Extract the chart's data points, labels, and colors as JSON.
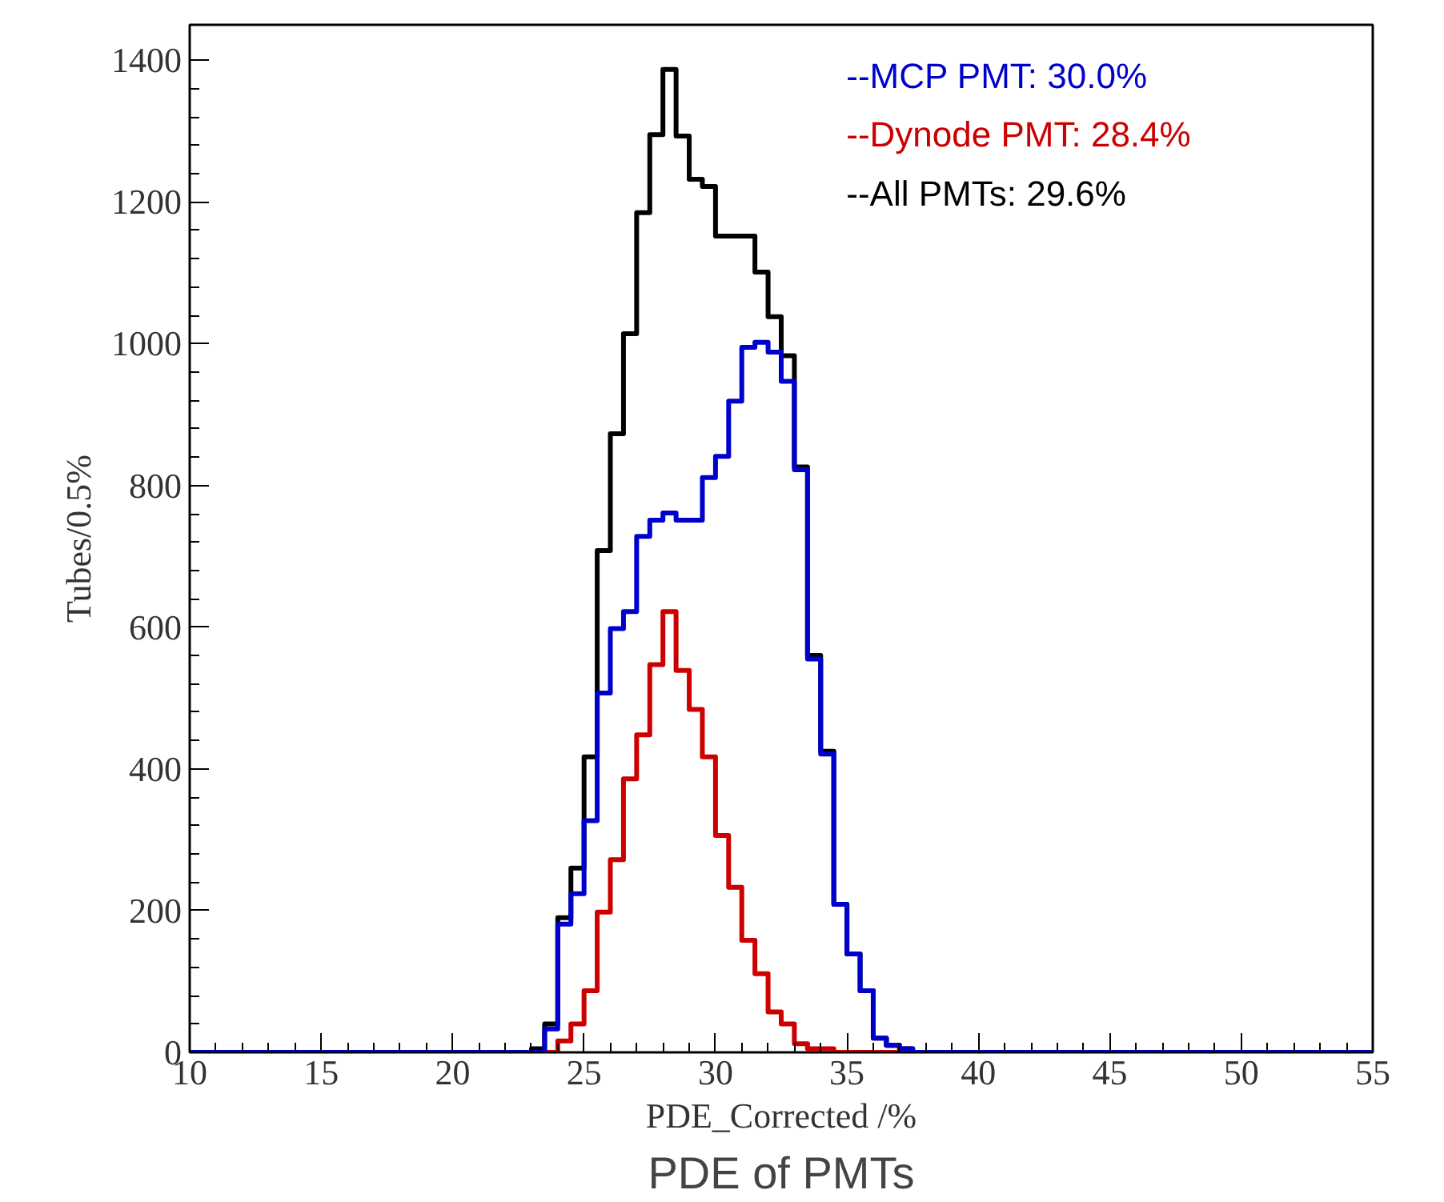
{
  "chart_data": {
    "type": "histogram",
    "title": "PDE of PMTs",
    "xlabel": "PDE_Corrected /%",
    "ylabel": "Tubes/0.5%",
    "bins": [
      10,
      10.5,
      11,
      11.5,
      12,
      12.5,
      13,
      13.5,
      14,
      14.5,
      15,
      15.5,
      16,
      16.5,
      17,
      17.5,
      18,
      18.5,
      19,
      19.5,
      20,
      20.5,
      21,
      21.5,
      22,
      22.5,
      23,
      23.5,
      24,
      24.5,
      25,
      25.5,
      26,
      26.5,
      27,
      27.5,
      28,
      28.5,
      29,
      29.5,
      30,
      30.5,
      31,
      31.5,
      32,
      32.5,
      33,
      33.5,
      34,
      34.5,
      35,
      35.5,
      36,
      36.5,
      37,
      37.5,
      38,
      38.5,
      39,
      39.5,
      40,
      40.5,
      41,
      41.5,
      42,
      42.5,
      43,
      43.5,
      44,
      44.5,
      45,
      45.5,
      46,
      46.5,
      47,
      47.5,
      48,
      48.5,
      49,
      49.5,
      50,
      50.5,
      51,
      51.5,
      52,
      52.5,
      53,
      53.5,
      54,
      54.5,
      55
    ],
    "series": [
      {
        "name": "--MCP PMT:  30.0%",
        "color": "#0000cc",
        "values": [
          0,
          0,
          0,
          0,
          0,
          0,
          0,
          0,
          0,
          0,
          0,
          0,
          0,
          0,
          0,
          0,
          0,
          0,
          0,
          0,
          0,
          0,
          0,
          0,
          0,
          0,
          0,
          33,
          181,
          224,
          327,
          507,
          598,
          622,
          728,
          751,
          761,
          751,
          751,
          811,
          841,
          919,
          995,
          1002,
          988,
          947,
          822,
          555,
          421,
          209,
          139,
          87,
          20,
          10,
          5,
          0,
          0,
          0,
          0,
          0,
          0,
          0,
          0,
          0,
          0,
          0,
          0,
          0,
          0,
          0,
          0,
          0,
          0,
          0,
          0,
          0,
          0,
          0,
          0,
          0,
          0,
          0,
          0,
          0,
          0,
          0,
          0,
          0,
          0,
          0
        ]
      },
      {
        "name": "--Dynode PMT: 28.4%",
        "color": "#cc0000",
        "values": [
          0,
          0,
          0,
          0,
          0,
          0,
          0,
          0,
          0,
          0,
          0,
          0,
          0,
          0,
          0,
          0,
          0,
          0,
          0,
          0,
          0,
          0,
          0,
          0,
          0,
          0,
          0,
          0,
          16,
          40,
          87,
          198,
          272,
          386,
          448,
          547,
          622,
          539,
          484,
          417,
          306,
          233,
          158,
          111,
          57,
          40,
          12,
          5,
          5,
          0,
          0,
          0,
          0,
          0,
          0,
          0,
          0,
          0,
          0,
          0,
          0,
          0,
          0,
          0,
          0,
          0,
          0,
          0,
          0,
          0,
          0,
          0,
          0,
          0,
          0,
          0,
          0,
          0,
          0,
          0,
          0,
          0,
          0,
          0,
          0,
          0,
          0,
          0,
          0,
          0
        ]
      },
      {
        "name": "--All PMTs: 29.6%",
        "color": "#000000",
        "values": [
          0,
          0,
          0,
          0,
          0,
          0,
          0,
          0,
          0,
          0,
          0,
          0,
          0,
          0,
          0,
          0,
          0,
          0,
          0,
          0,
          0,
          0,
          0,
          0,
          0,
          0,
          5,
          40,
          190,
          260,
          417,
          708,
          873,
          1014,
          1185,
          1295,
          1387,
          1293,
          1232,
          1222,
          1152,
          1152,
          1152,
          1101,
          1038,
          983,
          826,
          560,
          425,
          209,
          139,
          87,
          20,
          10,
          5,
          0,
          0,
          0,
          0,
          0,
          0,
          0,
          0,
          0,
          0,
          0,
          0,
          0,
          0,
          0,
          0,
          0,
          0,
          0,
          0,
          0,
          0,
          0,
          0,
          0,
          0,
          0,
          0,
          0,
          0,
          0,
          0,
          0,
          0,
          0
        ]
      }
    ],
    "xlim": [
      10,
      55
    ],
    "xticks": [
      10,
      15,
      20,
      25,
      30,
      35,
      40,
      45,
      50,
      55
    ],
    "ylim": [
      0,
      1450
    ],
    "yticks": [
      0,
      200,
      400,
      600,
      800,
      1000,
      1200,
      1400
    ],
    "grid": false,
    "legend": "top right"
  }
}
